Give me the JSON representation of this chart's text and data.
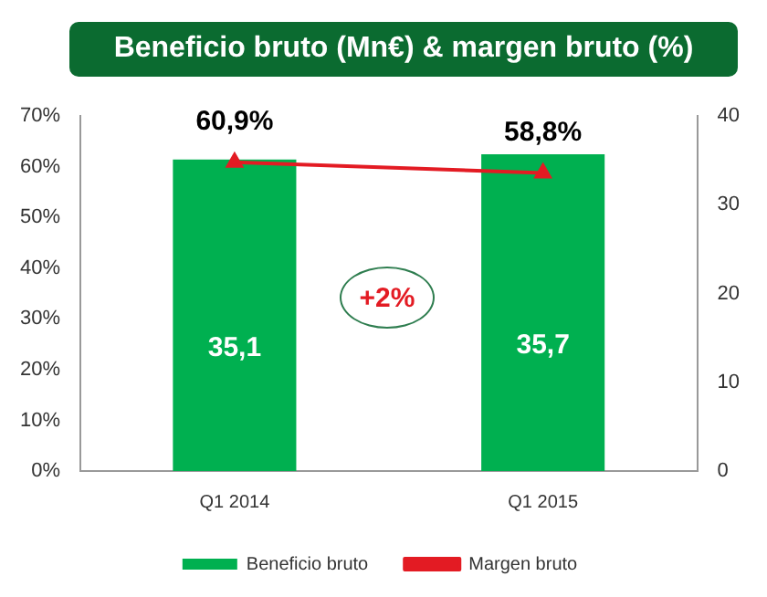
{
  "chart_data": {
    "type": "bar",
    "title": "Beneficio bruto (Mn€) & margen bruto (%)",
    "categories": [
      "Q1 2014",
      "Q1 2015"
    ],
    "series": [
      {
        "name": "Beneficio bruto",
        "axis": "y2",
        "color": "#00b050",
        "values": [
          35.1,
          35.7
        ],
        "value_labels": [
          "35,1",
          "35,7"
        ]
      },
      {
        "name": "Margen bruto",
        "type": "line",
        "axis": "y",
        "color": "#e31b23",
        "values": [
          60.9,
          58.8
        ],
        "value_labels": [
          "60,9%",
          "58,8%"
        ],
        "marker": "triangle"
      }
    ],
    "ylim": [
      0,
      70
    ],
    "yticks": [
      {
        "value": 0,
        "label": "0%"
      },
      {
        "value": 10,
        "label": "10%"
      },
      {
        "value": 20,
        "label": "20%"
      },
      {
        "value": 30,
        "label": "30%"
      },
      {
        "value": 40,
        "label": "40%"
      },
      {
        "value": 50,
        "label": "50%"
      },
      {
        "value": 60,
        "label": "60%"
      },
      {
        "value": 70,
        "label": "70%"
      }
    ],
    "y2lim": [
      0,
      40
    ],
    "y2ticks": [
      0,
      10,
      20,
      30,
      40
    ],
    "grid": false,
    "legend": "bottom",
    "annotations": [
      "+2%"
    ]
  }
}
